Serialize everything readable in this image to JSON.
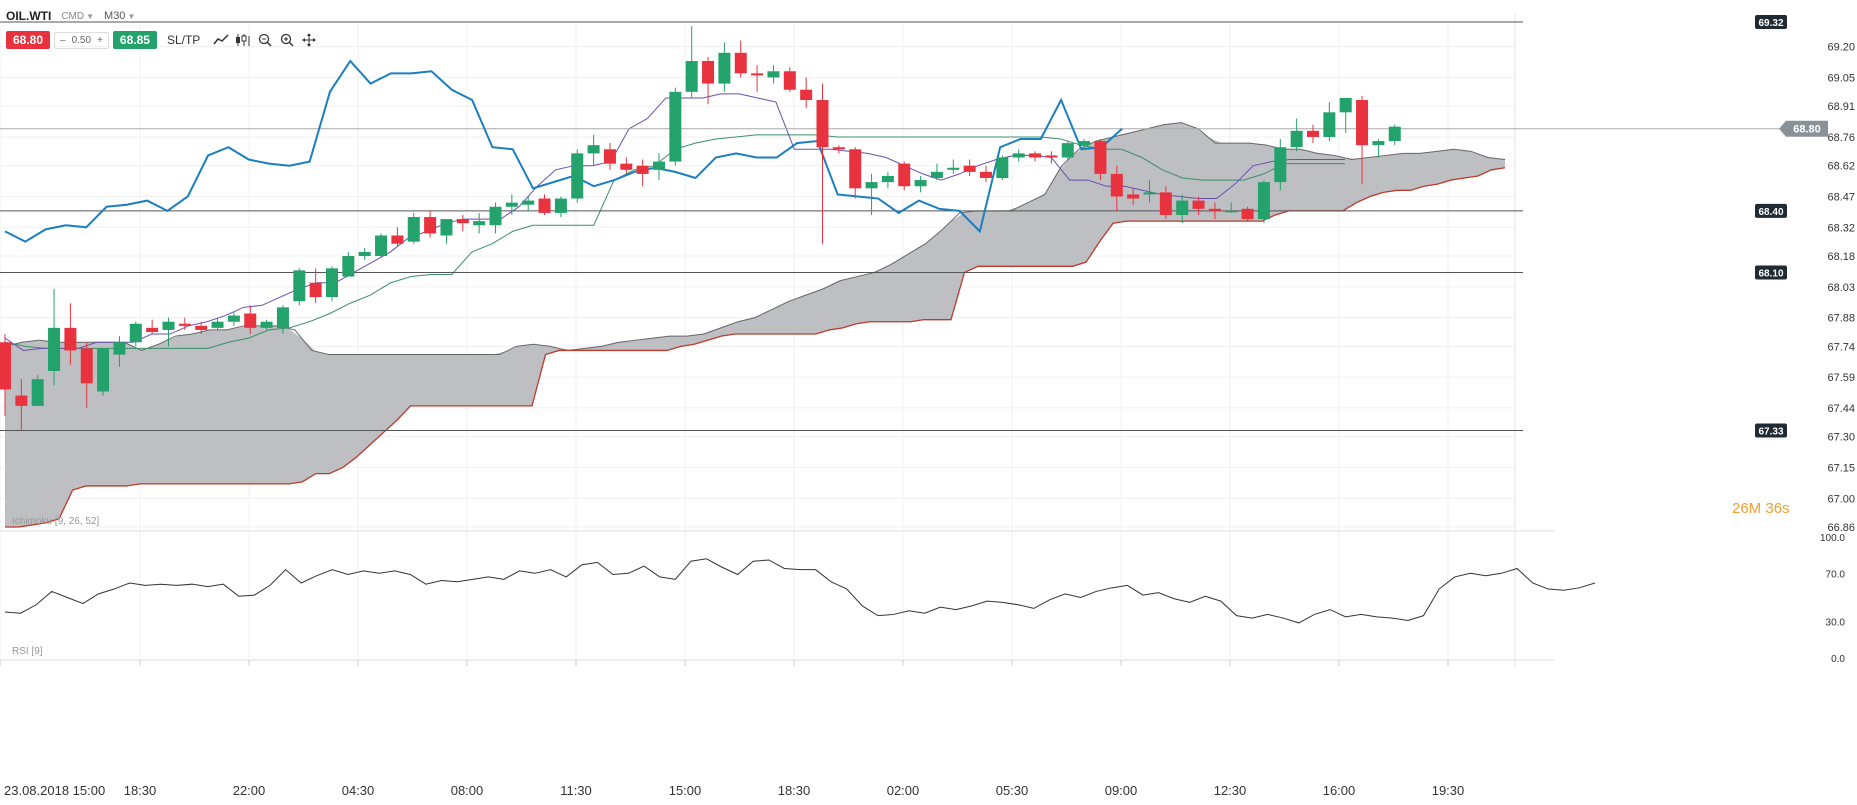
{
  "header": {
    "symbol": "OIL.WTI",
    "market": "CMD",
    "timeframe": "M30"
  },
  "trade": {
    "sell_price": "68.80",
    "lot": "0.50",
    "buy_price": "68.85",
    "sltp_label": "SL/TP"
  },
  "countdown": {
    "minutes": "26",
    "minutes_unit": "M",
    "seconds": "36",
    "seconds_unit": "s"
  },
  "colors": {
    "up": "#23a26b",
    "down": "#e8333f",
    "price_line": "#1a7fc1",
    "kijun": "#3c8f6a",
    "tenkan": "#6a4fb0",
    "cloud": "#b9bcbf",
    "span_b_line": "#c0392b",
    "countdown": "#f0a030"
  },
  "chart_data": [
    {
      "type": "candlestick",
      "title": "Ichimoku [9, 26, 52]",
      "ylim": [
        66.86,
        69.32
      ],
      "y_ticks": [
        "69.20",
        "69.05",
        "68.91",
        "68.76",
        "68.62",
        "68.47",
        "68.32",
        "68.18",
        "68.03",
        "67.88",
        "67.74",
        "67.59",
        "67.44",
        "67.30",
        "67.15",
        "67.00",
        "66.86"
      ],
      "x_tick_labels": [
        "23.08.2018 15:00",
        "18:30",
        "22:00",
        "04:30",
        "08:00",
        "11:30",
        "15:00",
        "18:30",
        "02:00",
        "05:30",
        "09:00",
        "12:30",
        "16:00",
        "19:30"
      ],
      "current_price": "68.80",
      "levels": [
        "69.32",
        "68.40",
        "68.10",
        "67.33"
      ],
      "candles": [
        {
          "o": 67.76,
          "h": 67.8,
          "l": 67.4,
          "c": 67.53
        },
        {
          "o": 67.5,
          "h": 67.58,
          "l": 67.33,
          "c": 67.45
        },
        {
          "o": 67.45,
          "h": 67.6,
          "l": 67.45,
          "c": 67.58
        },
        {
          "o": 67.62,
          "h": 68.02,
          "l": 67.55,
          "c": 67.83
        },
        {
          "o": 67.83,
          "h": 67.95,
          "l": 67.65,
          "c": 67.72
        },
        {
          "o": 67.73,
          "h": 67.76,
          "l": 67.44,
          "c": 67.56
        },
        {
          "o": 67.52,
          "h": 67.72,
          "l": 67.5,
          "c": 67.73
        },
        {
          "o": 67.7,
          "h": 67.79,
          "l": 67.64,
          "c": 67.76
        },
        {
          "o": 67.76,
          "h": 67.86,
          "l": 67.74,
          "c": 67.85
        },
        {
          "o": 67.83,
          "h": 67.87,
          "l": 67.8,
          "c": 67.81
        },
        {
          "o": 67.82,
          "h": 67.88,
          "l": 67.74,
          "c": 67.86
        },
        {
          "o": 67.85,
          "h": 67.88,
          "l": 67.82,
          "c": 67.84
        },
        {
          "o": 67.84,
          "h": 67.86,
          "l": 67.8,
          "c": 67.82
        },
        {
          "o": 67.83,
          "h": 67.88,
          "l": 67.82,
          "c": 67.86
        },
        {
          "o": 67.86,
          "h": 67.91,
          "l": 67.84,
          "c": 67.89
        },
        {
          "o": 67.9,
          "h": 67.94,
          "l": 67.8,
          "c": 67.83
        },
        {
          "o": 67.83,
          "h": 67.87,
          "l": 67.82,
          "c": 67.86
        },
        {
          "o": 67.83,
          "h": 67.94,
          "l": 67.8,
          "c": 67.93
        },
        {
          "o": 67.96,
          "h": 68.12,
          "l": 67.94,
          "c": 68.11
        },
        {
          "o": 68.05,
          "h": 68.12,
          "l": 67.95,
          "c": 67.98
        },
        {
          "o": 67.98,
          "h": 68.13,
          "l": 67.96,
          "c": 68.12
        },
        {
          "o": 68.08,
          "h": 68.2,
          "l": 68.08,
          "c": 68.18
        },
        {
          "o": 68.18,
          "h": 68.22,
          "l": 68.16,
          "c": 68.2
        },
        {
          "o": 68.18,
          "h": 68.29,
          "l": 68.17,
          "c": 68.28
        },
        {
          "o": 68.28,
          "h": 68.32,
          "l": 68.23,
          "c": 68.24
        },
        {
          "o": 68.25,
          "h": 68.39,
          "l": 68.24,
          "c": 68.37
        },
        {
          "o": 68.37,
          "h": 68.4,
          "l": 68.27,
          "c": 68.29
        },
        {
          "o": 68.28,
          "h": 68.35,
          "l": 68.24,
          "c": 68.36
        },
        {
          "o": 68.36,
          "h": 68.38,
          "l": 68.3,
          "c": 68.34
        },
        {
          "o": 68.33,
          "h": 68.39,
          "l": 68.29,
          "c": 68.35
        },
        {
          "o": 68.33,
          "h": 68.44,
          "l": 68.29,
          "c": 68.42
        },
        {
          "o": 68.42,
          "h": 68.48,
          "l": 68.38,
          "c": 68.44
        },
        {
          "o": 68.43,
          "h": 68.47,
          "l": 68.4,
          "c": 68.45
        },
        {
          "o": 68.46,
          "h": 68.48,
          "l": 68.38,
          "c": 68.39
        },
        {
          "o": 68.39,
          "h": 68.47,
          "l": 68.37,
          "c": 68.46
        },
        {
          "o": 68.46,
          "h": 68.7,
          "l": 68.44,
          "c": 68.68
        },
        {
          "o": 68.68,
          "h": 68.77,
          "l": 68.62,
          "c": 68.72
        },
        {
          "o": 68.7,
          "h": 68.73,
          "l": 68.6,
          "c": 68.63
        },
        {
          "o": 68.63,
          "h": 68.66,
          "l": 68.58,
          "c": 68.6
        },
        {
          "o": 68.62,
          "h": 68.65,
          "l": 68.52,
          "c": 68.58
        },
        {
          "o": 68.6,
          "h": 68.68,
          "l": 68.55,
          "c": 68.64
        },
        {
          "o": 68.64,
          "h": 69.0,
          "l": 68.62,
          "c": 68.98
        },
        {
          "o": 68.98,
          "h": 69.3,
          "l": 68.95,
          "c": 69.13
        },
        {
          "o": 69.13,
          "h": 69.15,
          "l": 68.92,
          "c": 69.02
        },
        {
          "o": 69.02,
          "h": 69.22,
          "l": 68.98,
          "c": 69.17
        },
        {
          "o": 69.17,
          "h": 69.23,
          "l": 69.05,
          "c": 69.07
        },
        {
          "o": 69.07,
          "h": 69.11,
          "l": 68.98,
          "c": 69.06
        },
        {
          "o": 69.05,
          "h": 69.11,
          "l": 69.02,
          "c": 69.08
        },
        {
          "o": 69.08,
          "h": 69.1,
          "l": 68.98,
          "c": 68.99
        },
        {
          "o": 68.99,
          "h": 69.05,
          "l": 68.9,
          "c": 68.94
        },
        {
          "o": 68.94,
          "h": 69.02,
          "l": 68.24,
          "c": 68.71
        },
        {
          "o": 68.71,
          "h": 68.72,
          "l": 68.68,
          "c": 68.7
        },
        {
          "o": 68.7,
          "h": 68.71,
          "l": 68.46,
          "c": 68.51
        },
        {
          "o": 68.51,
          "h": 68.58,
          "l": 68.38,
          "c": 68.54
        },
        {
          "o": 68.54,
          "h": 68.59,
          "l": 68.51,
          "c": 68.57
        },
        {
          "o": 68.63,
          "h": 68.64,
          "l": 68.5,
          "c": 68.52
        },
        {
          "o": 68.52,
          "h": 68.57,
          "l": 68.49,
          "c": 68.55
        },
        {
          "o": 68.56,
          "h": 68.63,
          "l": 68.55,
          "c": 68.59
        },
        {
          "o": 68.6,
          "h": 68.65,
          "l": 68.58,
          "c": 68.61
        },
        {
          "o": 68.62,
          "h": 68.65,
          "l": 68.57,
          "c": 68.59
        },
        {
          "o": 68.59,
          "h": 68.62,
          "l": 68.54,
          "c": 68.56
        },
        {
          "o": 68.56,
          "h": 68.67,
          "l": 68.55,
          "c": 68.66
        },
        {
          "o": 68.66,
          "h": 68.7,
          "l": 68.64,
          "c": 68.68
        },
        {
          "o": 68.68,
          "h": 68.69,
          "l": 68.64,
          "c": 68.66
        },
        {
          "o": 68.67,
          "h": 68.69,
          "l": 68.63,
          "c": 68.66
        },
        {
          "o": 68.66,
          "h": 68.74,
          "l": 68.65,
          "c": 68.73
        },
        {
          "o": 68.72,
          "h": 68.75,
          "l": 68.7,
          "c": 68.74
        },
        {
          "o": 68.74,
          "h": 68.75,
          "l": 68.55,
          "c": 68.58
        },
        {
          "o": 68.58,
          "h": 68.62,
          "l": 68.4,
          "c": 68.47
        },
        {
          "o": 68.48,
          "h": 68.51,
          "l": 68.43,
          "c": 68.46
        },
        {
          "o": 68.48,
          "h": 68.55,
          "l": 68.44,
          "c": 68.49
        },
        {
          "o": 68.49,
          "h": 68.52,
          "l": 68.36,
          "c": 68.38
        },
        {
          "o": 68.38,
          "h": 68.48,
          "l": 68.34,
          "c": 68.45
        },
        {
          "o": 68.45,
          "h": 68.47,
          "l": 68.38,
          "c": 68.41
        },
        {
          "o": 68.41,
          "h": 68.44,
          "l": 68.36,
          "c": 68.4
        },
        {
          "o": 68.4,
          "h": 68.44,
          "l": 68.39,
          "c": 68.4
        },
        {
          "o": 68.41,
          "h": 68.42,
          "l": 68.35,
          "c": 68.36
        },
        {
          "o": 68.36,
          "h": 68.55,
          "l": 68.34,
          "c": 68.54
        },
        {
          "o": 68.54,
          "h": 68.75,
          "l": 68.5,
          "c": 68.71
        },
        {
          "o": 68.71,
          "h": 68.85,
          "l": 68.69,
          "c": 68.79
        },
        {
          "o": 68.79,
          "h": 68.82,
          "l": 68.73,
          "c": 68.76
        },
        {
          "o": 68.76,
          "h": 68.93,
          "l": 68.74,
          "c": 68.88
        },
        {
          "o": 68.88,
          "h": 68.94,
          "l": 68.78,
          "c": 68.95
        },
        {
          "o": 68.94,
          "h": 68.96,
          "l": 68.53,
          "c": 68.72
        },
        {
          "o": 68.72,
          "h": 68.75,
          "l": 68.66,
          "c": 68.74
        },
        {
          "o": 68.74,
          "h": 68.82,
          "l": 68.72,
          "c": 68.81
        }
      ],
      "price_line": [
        68.3,
        68.25,
        68.31,
        68.33,
        68.32,
        68.42,
        68.43,
        68.45,
        68.4,
        68.47,
        68.67,
        68.71,
        68.65,
        68.63,
        68.62,
        68.64,
        68.98,
        69.13,
        69.02,
        69.07,
        69.07,
        69.08,
        68.99,
        68.94,
        68.71,
        68.7,
        68.51,
        68.54,
        68.57,
        68.52,
        68.55,
        68.59,
        68.61,
        68.59,
        68.56,
        68.66,
        68.68,
        68.66,
        68.66,
        68.73,
        68.74,
        68.48,
        68.47,
        68.46,
        68.39,
        68.45,
        68.41,
        68.4,
        68.3,
        68.71,
        68.75,
        68.75,
        68.94,
        68.7,
        68.71,
        68.8
      ],
      "tenkan": [
        67.78,
        67.72,
        67.73,
        67.73,
        67.73,
        67.76,
        67.76,
        67.76,
        67.8,
        67.8,
        67.84,
        67.86,
        67.89,
        67.93,
        67.94,
        67.98,
        68.02,
        68.05,
        68.05,
        68.1,
        68.15,
        68.2,
        68.27,
        68.3,
        68.34,
        68.36,
        68.36,
        68.36,
        68.42,
        68.52,
        68.6,
        68.62,
        68.62,
        68.64,
        68.8,
        68.85,
        68.95,
        68.95,
        68.95,
        68.97,
        68.97,
        68.95,
        68.93,
        68.7,
        68.7,
        68.7,
        68.69,
        68.68,
        68.66,
        68.62,
        68.58,
        68.55,
        68.58,
        68.62,
        68.65,
        68.67,
        68.67,
        68.66,
        68.55,
        68.55,
        68.52,
        68.52,
        68.5,
        68.48,
        68.47,
        68.46,
        68.46,
        68.53,
        68.62,
        68.64,
        68.65,
        68.65,
        68.65,
        68.65
      ],
      "kijun": [
        67.76,
        67.74,
        67.73,
        67.73,
        67.73,
        67.73,
        67.73,
        67.73,
        67.73,
        67.73,
        67.73,
        67.76,
        67.78,
        67.82,
        67.83,
        67.86,
        67.9,
        67.95,
        67.99,
        68.05,
        68.08,
        68.09,
        68.09,
        68.2,
        68.24,
        68.3,
        68.33,
        68.33,
        68.33,
        68.33,
        68.55,
        68.6,
        68.62,
        68.7,
        68.73,
        68.75,
        68.76,
        68.77,
        68.77,
        68.77,
        68.77,
        68.76,
        68.76,
        68.76,
        68.76,
        68.76,
        68.76,
        68.76,
        68.76,
        68.76,
        68.76,
        68.76,
        68.75,
        68.72,
        68.7,
        68.7,
        68.66,
        68.6,
        68.56,
        68.55,
        68.55,
        68.55,
        68.58,
        68.63,
        68.63,
        68.63,
        68.63
      ],
      "span_a": [
        67.74,
        67.76,
        67.77,
        67.76,
        67.76,
        67.76,
        67.76,
        67.76,
        67.72,
        67.75,
        67.79,
        67.8,
        67.82,
        67.82,
        67.84,
        67.84,
        67.84,
        67.82,
        67.72,
        67.7,
        67.7,
        67.7,
        67.7,
        67.7,
        67.7,
        67.7,
        67.7,
        67.7,
        67.7,
        67.7,
        67.74,
        67.75,
        67.74,
        67.72,
        67.73,
        67.74,
        67.76,
        67.77,
        67.78,
        67.79,
        67.79,
        67.8,
        67.83,
        67.86,
        67.88,
        67.92,
        67.96,
        67.99,
        68.02,
        68.06,
        68.08,
        68.1,
        68.14,
        68.19,
        68.24,
        68.31,
        68.39,
        68.4,
        68.4,
        68.4,
        68.44,
        68.48,
        68.62,
        68.7,
        68.74,
        68.76,
        68.78,
        68.8,
        68.82,
        68.83,
        68.8,
        68.73,
        68.73,
        68.73,
        68.72,
        68.7,
        68.7,
        68.68,
        68.67,
        68.65,
        68.66,
        68.67,
        68.68,
        68.68,
        68.69,
        68.7,
        68.69,
        68.66,
        68.65
      ],
      "span_b": [
        66.86,
        66.86,
        66.87,
        66.88,
        66.9,
        67.04,
        67.06,
        67.06,
        67.06,
        67.06,
        67.07,
        67.07,
        67.07,
        67.07,
        67.07,
        67.07,
        67.07,
        67.07,
        67.07,
        67.07,
        67.07,
        67.07,
        67.08,
        67.12,
        67.12,
        67.15,
        67.2,
        67.26,
        67.32,
        67.38,
        67.45,
        67.45,
        67.45,
        67.45,
        67.45,
        67.45,
        67.45,
        67.45,
        67.45,
        67.45,
        67.7,
        67.72,
        67.72,
        67.72,
        67.72,
        67.72,
        67.72,
        67.72,
        67.72,
        67.72,
        67.74,
        67.75,
        67.77,
        67.79,
        67.8,
        67.8,
        67.8,
        67.8,
        67.8,
        67.8,
        67.8,
        67.82,
        67.83,
        67.85,
        67.86,
        67.86,
        67.86,
        67.86,
        67.87,
        67.87,
        67.87,
        68.1,
        68.13,
        68.13,
        68.13,
        68.13,
        68.13,
        68.13,
        68.13,
        68.13,
        68.15,
        68.25,
        68.34,
        68.35,
        68.35,
        68.35,
        68.35,
        68.35,
        68.35,
        68.35,
        68.35,
        68.35,
        68.35,
        68.35,
        68.38,
        68.4,
        68.4,
        68.4,
        68.4,
        68.4,
        68.44,
        68.47,
        68.49,
        68.5,
        68.5,
        68.52,
        68.53,
        68.55,
        68.56,
        68.57,
        68.6,
        68.61
      ]
    },
    {
      "type": "line",
      "title": "RSI [9]",
      "ylim": [
        0,
        100
      ],
      "y_ticks": [
        "100.0",
        "70.0",
        "30.0",
        "0.0"
      ],
      "values": [
        38,
        37,
        44,
        55,
        50,
        45,
        53,
        57,
        62,
        60,
        61,
        60,
        61,
        59,
        61,
        51,
        52,
        60,
        73,
        62,
        68,
        73,
        69,
        72,
        70,
        72,
        69,
        61,
        64,
        63,
        65,
        67,
        65,
        72,
        70,
        73,
        67,
        77,
        79,
        69,
        70,
        76,
        67,
        65,
        80,
        82,
        75,
        69,
        80,
        81,
        74,
        73,
        73,
        63,
        57,
        43,
        35,
        36,
        39,
        37,
        42,
        40,
        43,
        47,
        46,
        44,
        41,
        48,
        53,
        50,
        55,
        58,
        60,
        52,
        54,
        49,
        46,
        51,
        47,
        35,
        33,
        36,
        33,
        29,
        36,
        40,
        34,
        36,
        34,
        33,
        31,
        35,
        57,
        67,
        70,
        68,
        70,
        74,
        62,
        57,
        56,
        58,
        62
      ]
    }
  ]
}
